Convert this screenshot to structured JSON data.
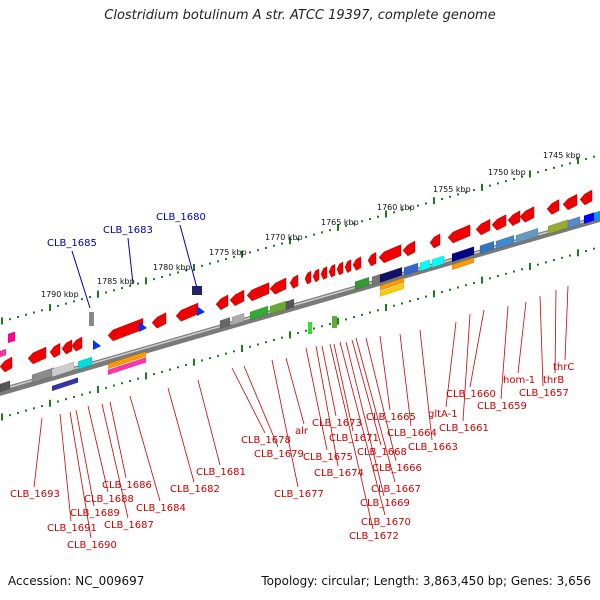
{
  "title": "Clostridium botulinum A str. ATCC 19397, complete genome",
  "footer": {
    "accession": "Accession: NC_009697",
    "summary": "Topology: circular; Length: 3,863,450 bp; Genes: 3,656"
  },
  "colors": {
    "backbone": "#7a7a7a",
    "tick": "#1e7a1e",
    "gene_red": "#ee0000",
    "label_red": "#cc0000",
    "label_blue": "#0000aa",
    "rna_blue": "#0033ee"
  },
  "kbp_marks": [
    "1745 kbp",
    "1750 kbp",
    "1755 kbp",
    "1760 kbp",
    "1765 kbp",
    "1770 kbp",
    "1775 kbp",
    "1780 kbp",
    "1785 kbp",
    "1790 kbp"
  ],
  "blue_labels": [
    "CLB_1680",
    "CLB_1683",
    "CLB_1685"
  ],
  "red_labels": [
    "thrC",
    "thrB",
    "CLB_1657",
    "hom-1",
    "CLB_1659",
    "CLB_1660",
    "CLB_1661",
    "gltA-1",
    "CLB_1663",
    "CLB_1664",
    "CLB_1665",
    "CLB_1666",
    "CLB_1667",
    "CLB_1668",
    "CLB_1669",
    "CLB_1670",
    "CLB_1671",
    "CLB_1672",
    "CLB_1673",
    "CLB_1674",
    "CLB_1675",
    "alr",
    "CLB_1677",
    "CLB_1678",
    "CLB_1679",
    "CLB_1681",
    "CLB_1682",
    "CLB_1684",
    "CLB_1686",
    "CLB_1687",
    "CLB_1688",
    "CLB_1689",
    "CLB_1690",
    "CLB_1691",
    "CLB_1693"
  ]
}
